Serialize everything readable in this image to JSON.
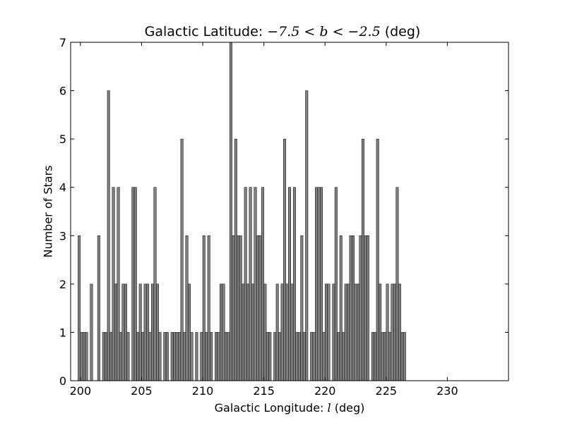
{
  "chart_data": {
    "type": "bar",
    "title_prefix": "Galactic Latitude: ",
    "title_math": "−7.5 < b < −2.5",
    "title_suffix": " (deg)",
    "xlabel_prefix": "Galactic Longitude: ",
    "xlabel_math": "l",
    "xlabel_suffix": " (deg)",
    "ylabel": "Number of Stars",
    "xlim": [
      199.2,
      235.0
    ],
    "ylim": [
      0,
      7
    ],
    "xticks": [
      200,
      205,
      210,
      215,
      220,
      225,
      230
    ],
    "yticks": [
      0,
      1,
      2,
      3,
      4,
      5,
      6,
      7
    ],
    "bar_start": 199.8,
    "bar_width": 0.2,
    "bar_color": "#808080",
    "values": [
      3,
      1,
      1,
      1,
      0,
      2,
      0,
      0,
      3,
      0,
      1,
      1,
      6,
      1,
      4,
      2,
      4,
      1,
      2,
      2,
      1,
      0,
      4,
      4,
      1,
      2,
      1,
      2,
      2,
      1,
      2,
      4,
      2,
      1,
      0,
      1,
      1,
      0,
      1,
      1,
      1,
      1,
      5,
      1,
      3,
      2,
      1,
      0,
      1,
      0,
      1,
      3,
      1,
      3,
      1,
      0,
      1,
      1,
      2,
      2,
      1,
      1,
      7,
      3,
      5,
      3,
      3,
      2,
      4,
      2,
      4,
      2,
      4,
      3,
      3,
      4,
      2,
      1,
      1,
      0,
      1,
      2,
      1,
      2,
      5,
      2,
      4,
      2,
      4,
      1,
      1,
      3,
      1,
      6,
      0,
      1,
      1,
      4,
      4,
      4,
      1,
      2,
      2,
      0,
      2,
      4,
      1,
      3,
      1,
      2,
      2,
      3,
      3,
      2,
      2,
      3,
      5,
      3,
      3,
      0,
      1,
      1,
      5,
      2,
      1,
      1,
      2,
      1,
      2,
      2,
      4,
      2,
      1,
      1
    ]
  }
}
